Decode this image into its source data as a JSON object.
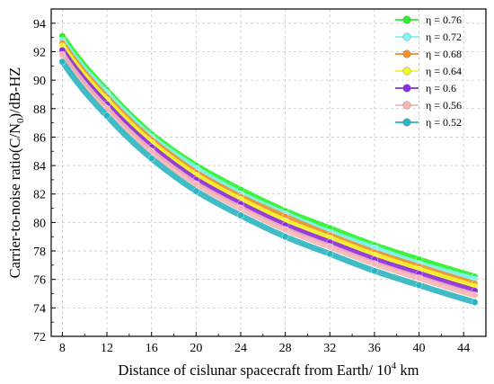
{
  "chart_data": {
    "type": "line",
    "title": "",
    "xlabel_main": "Distance of cislunar spacecraft from Earth/ 10",
    "xlabel_sup": "4",
    "xlabel_tail": " km",
    "ylabel_main": "Carrier-to-noise ratio(C/N",
    "ylabel_sub": "0",
    "ylabel_tail": ")/dB-HZ",
    "xlim": [
      7,
      46
    ],
    "ylim": [
      72,
      95
    ],
    "xticks": [
      8,
      12,
      16,
      20,
      24,
      28,
      32,
      36,
      40,
      44
    ],
    "yticks": [
      72,
      74,
      76,
      78,
      80,
      82,
      84,
      86,
      88,
      90,
      92,
      94
    ],
    "grid": true,
    "legend_position": "top-right",
    "marker": "circle",
    "series": [
      {
        "name": "η = 0.76",
        "color": "#2bef2b",
        "x": [
          8,
          12,
          16,
          20,
          24,
          28,
          32,
          36,
          40,
          45
        ],
        "y": [
          93.1,
          89.3,
          86.2,
          84.0,
          82.3,
          80.8,
          79.6,
          78.4,
          77.4,
          76.2
        ]
      },
      {
        "name": "η = 0.72",
        "color": "#7ff5f5",
        "x": [
          8,
          12,
          16,
          20,
          24,
          28,
          32,
          36,
          40,
          45
        ],
        "y": [
          92.8,
          89.1,
          86.0,
          83.8,
          82.0,
          80.6,
          79.3,
          78.2,
          77.1,
          76.0
        ]
      },
      {
        "name": "η = 0.68",
        "color": "#f58f2a",
        "x": [
          8,
          12,
          16,
          20,
          24,
          28,
          32,
          36,
          40,
          45
        ],
        "y": [
          92.6,
          88.8,
          85.8,
          83.5,
          81.8,
          80.4,
          79.1,
          77.9,
          76.9,
          75.7
        ]
      },
      {
        "name": "η = 0.64",
        "color": "#f5f52a",
        "x": [
          8,
          12,
          16,
          20,
          24,
          28,
          32,
          36,
          40,
          45
        ],
        "y": [
          92.4,
          88.6,
          85.6,
          83.3,
          81.6,
          80.1,
          78.9,
          77.7,
          76.7,
          75.5
        ]
      },
      {
        "name": "η = 0.6",
        "color": "#8a2be2",
        "x": [
          8,
          12,
          16,
          20,
          24,
          28,
          32,
          36,
          40,
          45
        ],
        "y": [
          92.1,
          88.3,
          85.3,
          83.0,
          81.3,
          79.8,
          78.6,
          77.4,
          76.4,
          75.2
        ]
      },
      {
        "name": "η = 0.56",
        "color": "#f5b5b5",
        "x": [
          8,
          12,
          16,
          20,
          24,
          28,
          32,
          36,
          40,
          45
        ],
        "y": [
          91.8,
          88.0,
          85.0,
          82.7,
          81.0,
          79.5,
          78.3,
          77.1,
          76.1,
          74.9
        ]
      },
      {
        "name": "η = 0.52",
        "color": "#2ab5c0",
        "x": [
          8,
          12,
          16,
          20,
          24,
          28,
          32,
          36,
          40,
          45
        ],
        "y": [
          91.3,
          87.5,
          84.5,
          82.2,
          80.5,
          79.0,
          77.8,
          76.6,
          75.6,
          74.4
        ]
      }
    ]
  }
}
